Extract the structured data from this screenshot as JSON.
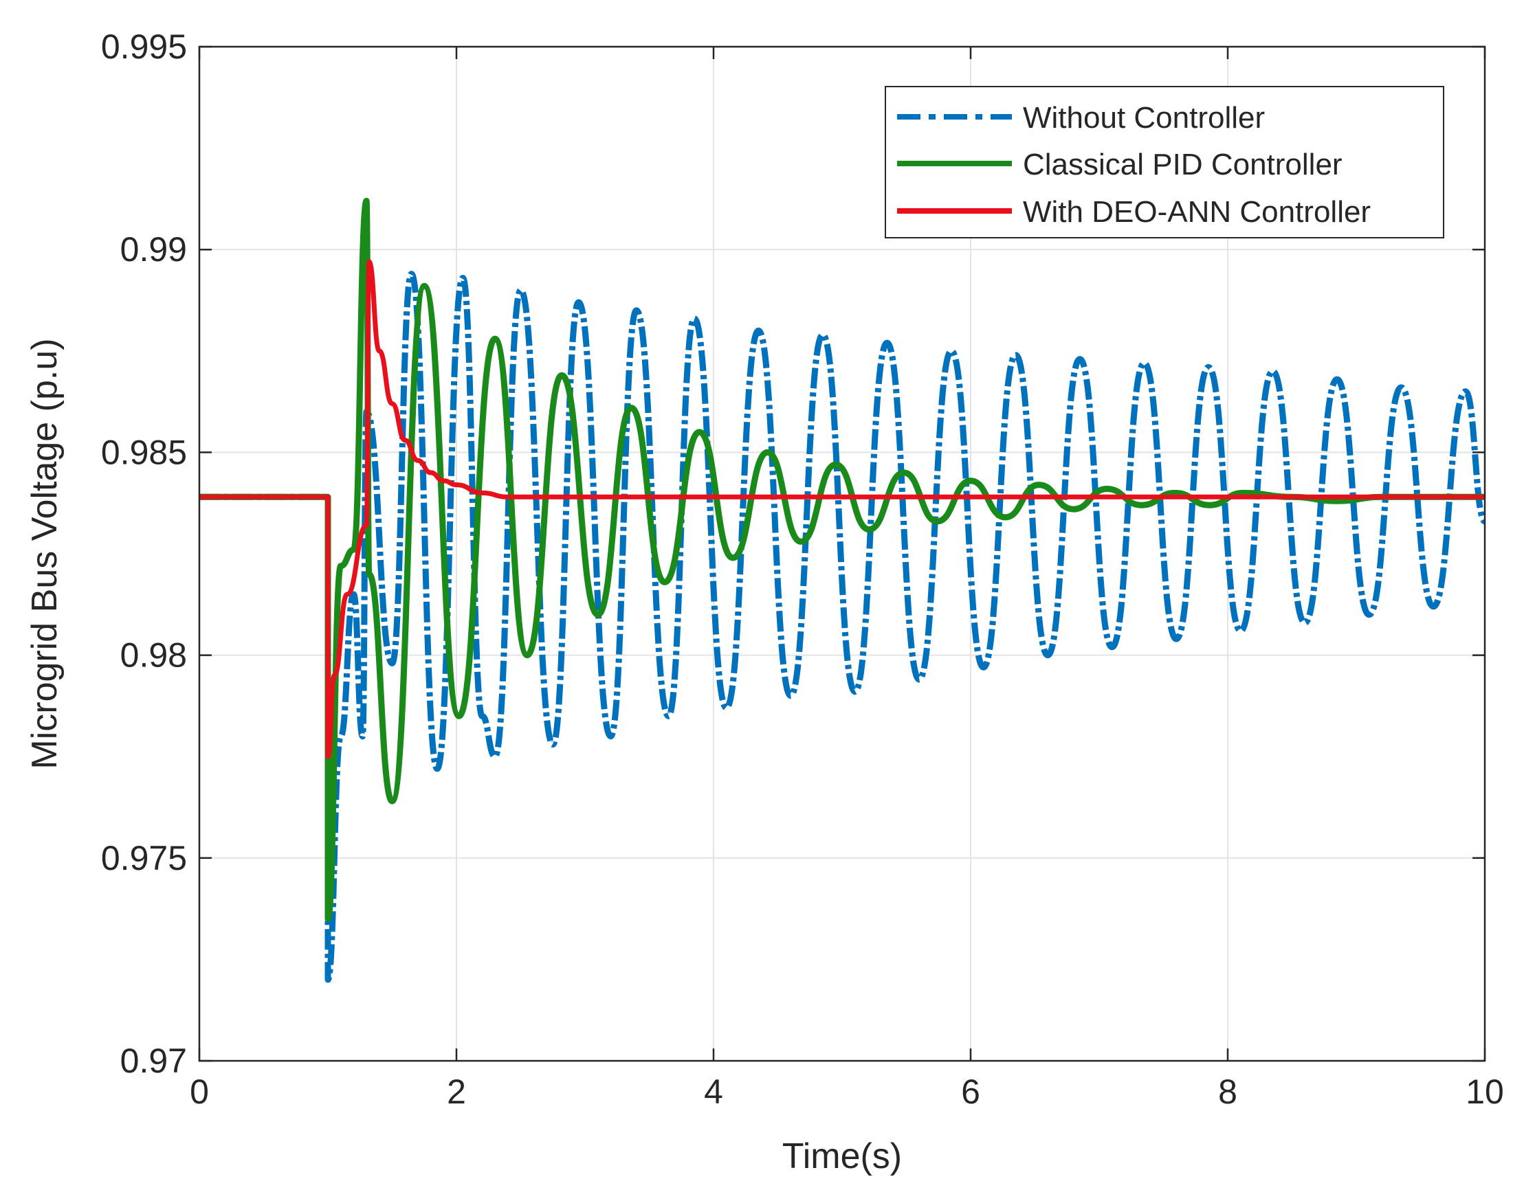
{
  "chart_data": {
    "type": "line",
    "title": "",
    "xlabel": "Time(s)",
    "ylabel": "Microgrid Bus Voltage (p.u)",
    "xlim": [
      0,
      10
    ],
    "ylim": [
      0.97,
      0.995
    ],
    "xticks": [
      0,
      2,
      4,
      6,
      8,
      10
    ],
    "xtick_labels": [
      "0",
      "2",
      "4",
      "6",
      "8",
      "10"
    ],
    "yticks": [
      0.97,
      0.975,
      0.98,
      0.985,
      0.99,
      0.995
    ],
    "ytick_labels": [
      "0.97",
      "0.975",
      "0.98",
      "0.985",
      "0.99",
      "0.995"
    ],
    "grid": true,
    "legend_position": "top-right",
    "series": [
      {
        "name": "Without Controller",
        "color": "#0072BD",
        "style": "dash-dot",
        "steady_state": 0.9839,
        "x": [
          0,
          1.0,
          1.0,
          1.1,
          1.2,
          1.27,
          1.3,
          1.5,
          1.65,
          1.85,
          2.05,
          2.2,
          2.3,
          2.5,
          2.75,
          2.95,
          3.2,
          3.4,
          3.65,
          3.85,
          4.1,
          4.35,
          4.6,
          4.85,
          5.1,
          5.35,
          5.6,
          5.85,
          6.1,
          6.35,
          6.6,
          6.85,
          7.1,
          7.35,
          7.6,
          7.85,
          8.1,
          8.35,
          8.6,
          8.85,
          9.1,
          9.35,
          9.6,
          9.85,
          10.0
        ],
        "y": [
          0.9839,
          0.9839,
          0.972,
          0.978,
          0.9815,
          0.978,
          0.986,
          0.9798,
          0.9894,
          0.9772,
          0.9893,
          0.9785,
          0.9775,
          0.989,
          0.9778,
          0.9887,
          0.978,
          0.9885,
          0.9785,
          0.9883,
          0.9787,
          0.988,
          0.979,
          0.9879,
          0.9791,
          0.9877,
          0.9794,
          0.9875,
          0.9797,
          0.9874,
          0.98,
          0.9873,
          0.9802,
          0.9872,
          0.9804,
          0.9871,
          0.9806,
          0.987,
          0.9808,
          0.9868,
          0.981,
          0.9866,
          0.9812,
          0.9865,
          0.9833
        ]
      },
      {
        "name": "Classical PID Controller",
        "color": "#1A8A1A",
        "style": "solid",
        "steady_state": 0.9839,
        "x": [
          0,
          1.0,
          1.0,
          1.1,
          1.2,
          1.3,
          1.32,
          1.5,
          1.75,
          2.02,
          2.3,
          2.55,
          2.82,
          3.1,
          3.36,
          3.62,
          3.89,
          4.15,
          4.42,
          4.68,
          4.95,
          5.21,
          5.48,
          5.74,
          6.0,
          6.27,
          6.53,
          6.8,
          7.06,
          7.33,
          7.59,
          7.86,
          8.12,
          8.5,
          8.85,
          9.2,
          9.6,
          10.0
        ],
        "y": [
          0.9839,
          0.9839,
          0.9735,
          0.9822,
          0.9826,
          0.9912,
          0.982,
          0.9764,
          0.9891,
          0.9785,
          0.9878,
          0.98,
          0.9869,
          0.981,
          0.9861,
          0.9818,
          0.9855,
          0.9824,
          0.985,
          0.9828,
          0.9847,
          0.9831,
          0.9845,
          0.9833,
          0.9843,
          0.9834,
          0.9842,
          0.9836,
          0.9841,
          0.9837,
          0.984,
          0.9837,
          0.984,
          0.9839,
          0.9838,
          0.9839,
          0.9839,
          0.9839
        ]
      },
      {
        "name": "With DEO-ANN Controller",
        "color": "#E8101A",
        "style": "solid",
        "steady_state": 0.9839,
        "x": [
          0,
          1.0,
          1.0,
          1.05,
          1.15,
          1.3,
          1.32,
          1.4,
          1.5,
          1.6,
          1.7,
          1.8,
          1.9,
          2.0,
          2.2,
          2.4,
          2.7,
          3.0,
          3.5,
          4.0,
          5.0,
          6.0,
          7.0,
          8.0,
          9.0,
          10.0
        ],
        "y": [
          0.9839,
          0.9839,
          0.9775,
          0.9795,
          0.9815,
          0.9832,
          0.9897,
          0.9875,
          0.9862,
          0.9853,
          0.9848,
          0.9845,
          0.9843,
          0.9842,
          0.984,
          0.9839,
          0.9839,
          0.9839,
          0.9839,
          0.9839,
          0.9839,
          0.9839,
          0.9839,
          0.9839,
          0.9839,
          0.9839
        ]
      }
    ]
  }
}
